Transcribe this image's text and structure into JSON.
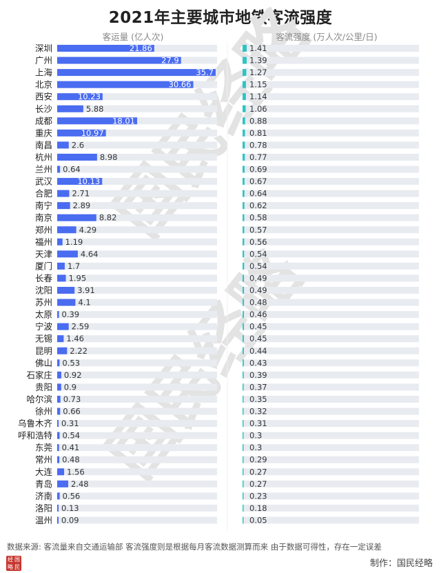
{
  "title": "2021年主要城市地铁客流强度",
  "watermark": "国民经略",
  "footer": {
    "source": "数据来源: 客流量来自交通运输部  客流强度则是根据每月客流数据测算而来  由于数据可得性，存在一定误差",
    "maker": "制作：国民经略",
    "logo_chars": [
      "经",
      "国",
      "略",
      "民"
    ]
  },
  "colors": {
    "bar_left": "#4a6cf0",
    "bar_right": "#2ec4c4",
    "track": "#e8ebf0"
  },
  "chart_data": [
    {
      "type": "bar",
      "orientation": "horizontal",
      "title": "客运量 (亿人次)",
      "categories": [
        "深圳",
        "广州",
        "上海",
        "北京",
        "西安",
        "长沙",
        "成都",
        "重庆",
        "南昌",
        "杭州",
        "兰州",
        "武汉",
        "合肥",
        "南宁",
        "南京",
        "郑州",
        "福州",
        "天津",
        "厦门",
        "长春",
        "沈阳",
        "苏州",
        "太原",
        "宁波",
        "无锡",
        "昆明",
        "佛山",
        "石家庄",
        "贵阳",
        "哈尔滨",
        "徐州",
        "乌鲁木齐",
        "呼和浩特",
        "东莞",
        "常州",
        "大连",
        "青岛",
        "济南",
        "洛阳",
        "温州"
      ],
      "values": [
        21.86,
        27.9,
        35.7,
        30.66,
        10.23,
        5.88,
        18.01,
        10.97,
        2.6,
        8.98,
        0.64,
        10.13,
        2.71,
        2.89,
        8.82,
        4.29,
        1.19,
        4.64,
        1.7,
        1.95,
        3.91,
        4.1,
        0.39,
        2.59,
        1.46,
        2.22,
        0.53,
        0.92,
        0.9,
        0.73,
        0.66,
        0.31,
        0.54,
        0.41,
        0.48,
        1.56,
        2.48,
        0.56,
        0.13,
        0.09
      ],
      "xlim": [
        0,
        35.7
      ]
    },
    {
      "type": "bar",
      "orientation": "horizontal",
      "title": "客流强度 (万人次/公里/日)",
      "categories": [
        "深圳",
        "广州",
        "上海",
        "北京",
        "西安",
        "长沙",
        "成都",
        "重庆",
        "南昌",
        "杭州",
        "兰州",
        "武汉",
        "合肥",
        "南宁",
        "南京",
        "郑州",
        "福州",
        "天津",
        "厦门",
        "长春",
        "沈阳",
        "苏州",
        "太原",
        "宁波",
        "无锡",
        "昆明",
        "佛山",
        "石家庄",
        "贵阳",
        "哈尔滨",
        "徐州",
        "乌鲁木齐",
        "呼和浩特",
        "东莞",
        "常州",
        "大连",
        "青岛",
        "济南",
        "洛阳",
        "温州"
      ],
      "values": [
        "1.41",
        "1.39",
        "1.27",
        "1.15",
        "1.14",
        "1.06",
        "0.88",
        "0.81",
        "0.78",
        "0.77",
        "0.69",
        "0.67",
        "0.64",
        "0.62",
        "0.58",
        "0.57",
        "0.56",
        "0.54",
        "0.54",
        "0.49",
        "0.49",
        "0.48",
        "0.46",
        "0.45",
        "0.45",
        "0.44",
        "0.43",
        "0.39",
        "0.37",
        "0.35",
        "0.32",
        "0.31",
        "0.3",
        "0.3",
        "0.29",
        "0.27",
        "0.27",
        "0.23",
        "0.18",
        "0.05"
      ]
    }
  ]
}
